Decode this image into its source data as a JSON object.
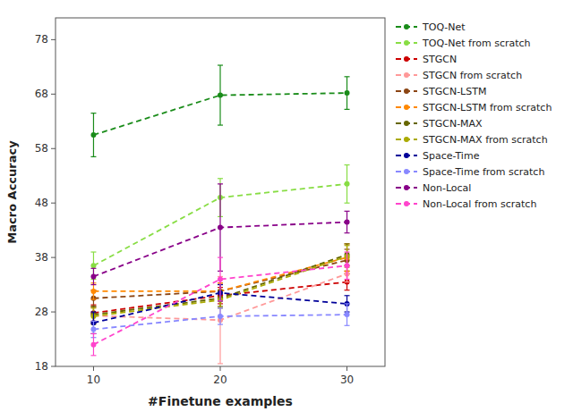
{
  "chart_data": {
    "type": "line",
    "xlabel": "#Finetune examples",
    "ylabel": "Macro Accuracy",
    "x": [
      10,
      20,
      30
    ],
    "xlim": [
      7,
      33
    ],
    "ylim": [
      18,
      82
    ],
    "xticks": [
      10,
      20,
      30
    ],
    "yticks": [
      18,
      28,
      38,
      48,
      58,
      68,
      78
    ],
    "grid": false,
    "legend": "right",
    "marker": "circle",
    "line_style": "dashed",
    "series": [
      {
        "name": "TOQ-Net",
        "color": "#1a8c1a",
        "values": [
          60.5,
          67.8,
          68.2
        ],
        "errors": [
          4.0,
          5.5,
          3.0
        ]
      },
      {
        "name": "TOQ-Net from scratch",
        "color": "#88dd44",
        "values": [
          36.5,
          49.0,
          51.5
        ],
        "errors": [
          2.5,
          3.5,
          3.5
        ]
      },
      {
        "name": "STGCN",
        "color": "#cc0000",
        "values": [
          27.8,
          31.0,
          33.5
        ],
        "errors": [
          1.5,
          1.5,
          1.5
        ]
      },
      {
        "name": "STGCN from scratch",
        "color": "#ff9999",
        "values": [
          27.3,
          26.5,
          35.0
        ],
        "errors": [
          1.5,
          8.0,
          1.5
        ]
      },
      {
        "name": "STGCN-LSTM",
        "color": "#8B4513",
        "values": [
          30.5,
          31.8,
          37.5
        ],
        "errors": [
          1.5,
          1.5,
          2.0
        ]
      },
      {
        "name": "STGCN-LSTM from scratch",
        "color": "#ff8800",
        "values": [
          31.8,
          31.8,
          38.0
        ],
        "errors": [
          1.5,
          1.5,
          2.5
        ]
      },
      {
        "name": "STGCN-MAX",
        "color": "#666600",
        "values": [
          27.5,
          30.5,
          38.5
        ],
        "errors": [
          1.5,
          1.5,
          2.0
        ]
      },
      {
        "name": "STGCN-MAX from scratch",
        "color": "#aaaa00",
        "values": [
          27.2,
          30.2,
          38.2
        ],
        "errors": [
          1.5,
          1.5,
          2.0
        ]
      },
      {
        "name": "Space-Time",
        "color": "#000099",
        "values": [
          26.0,
          31.5,
          29.5
        ],
        "errors": [
          2.0,
          1.5,
          1.5
        ]
      },
      {
        "name": "Space-Time from scratch",
        "color": "#8888ff",
        "values": [
          24.8,
          27.2,
          27.5
        ],
        "errors": [
          1.5,
          1.5,
          2.0
        ]
      },
      {
        "name": "Non-Local",
        "color": "#880088",
        "values": [
          34.5,
          43.5,
          44.5
        ],
        "errors": [
          1.5,
          8.0,
          2.0
        ]
      },
      {
        "name": "Non-Local from scratch",
        "color": "#ff44cc",
        "values": [
          22.0,
          34.0,
          36.5
        ],
        "errors": [
          2.0,
          4.0,
          2.5
        ]
      }
    ]
  }
}
